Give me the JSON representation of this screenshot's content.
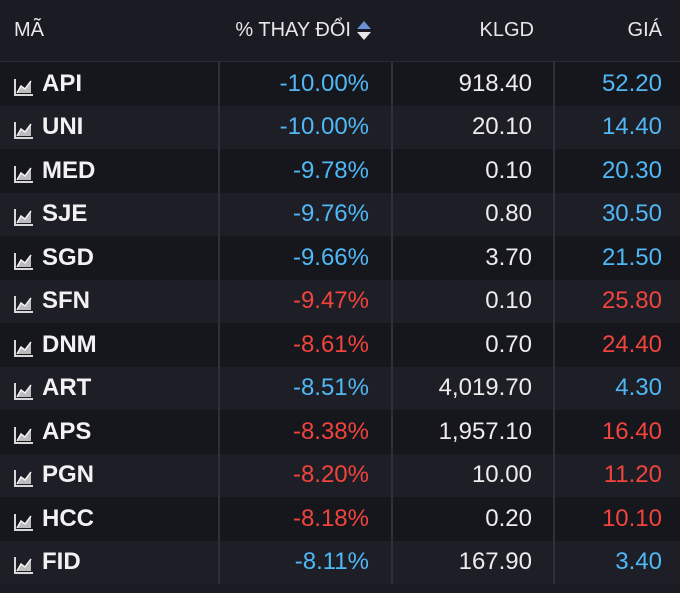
{
  "header": {
    "code_label": "MÃ",
    "change_label": "% THAY ĐỔI",
    "volume_label": "KLGD",
    "price_label": "GIÁ"
  },
  "colors": {
    "blue": "#4fb8f5",
    "red": "#f0443c"
  },
  "rows": [
    {
      "code": "API",
      "change": "-10.00%",
      "volume": "918.40",
      "price": "52.20",
      "change_color": "blue",
      "price_color": "blue"
    },
    {
      "code": "UNI",
      "change": "-10.00%",
      "volume": "20.10",
      "price": "14.40",
      "change_color": "blue",
      "price_color": "blue"
    },
    {
      "code": "MED",
      "change": "-9.78%",
      "volume": "0.10",
      "price": "20.30",
      "change_color": "blue",
      "price_color": "blue"
    },
    {
      "code": "SJE",
      "change": "-9.76%",
      "volume": "0.80",
      "price": "30.50",
      "change_color": "blue",
      "price_color": "blue"
    },
    {
      "code": "SGD",
      "change": "-9.66%",
      "volume": "3.70",
      "price": "21.50",
      "change_color": "blue",
      "price_color": "blue"
    },
    {
      "code": "SFN",
      "change": "-9.47%",
      "volume": "0.10",
      "price": "25.80",
      "change_color": "red",
      "price_color": "red"
    },
    {
      "code": "DNM",
      "change": "-8.61%",
      "volume": "0.70",
      "price": "24.40",
      "change_color": "red",
      "price_color": "red"
    },
    {
      "code": "ART",
      "change": "-8.51%",
      "volume": "4,019.70",
      "price": "4.30",
      "change_color": "blue",
      "price_color": "blue"
    },
    {
      "code": "APS",
      "change": "-8.38%",
      "volume": "1,957.10",
      "price": "16.40",
      "change_color": "red",
      "price_color": "red"
    },
    {
      "code": "PGN",
      "change": "-8.20%",
      "volume": "10.00",
      "price": "11.20",
      "change_color": "red",
      "price_color": "red"
    },
    {
      "code": "HCC",
      "change": "-8.18%",
      "volume": "0.20",
      "price": "10.10",
      "change_color": "red",
      "price_color": "red"
    },
    {
      "code": "FID",
      "change": "-8.11%",
      "volume": "167.90",
      "price": "3.40",
      "change_color": "blue",
      "price_color": "blue"
    }
  ]
}
